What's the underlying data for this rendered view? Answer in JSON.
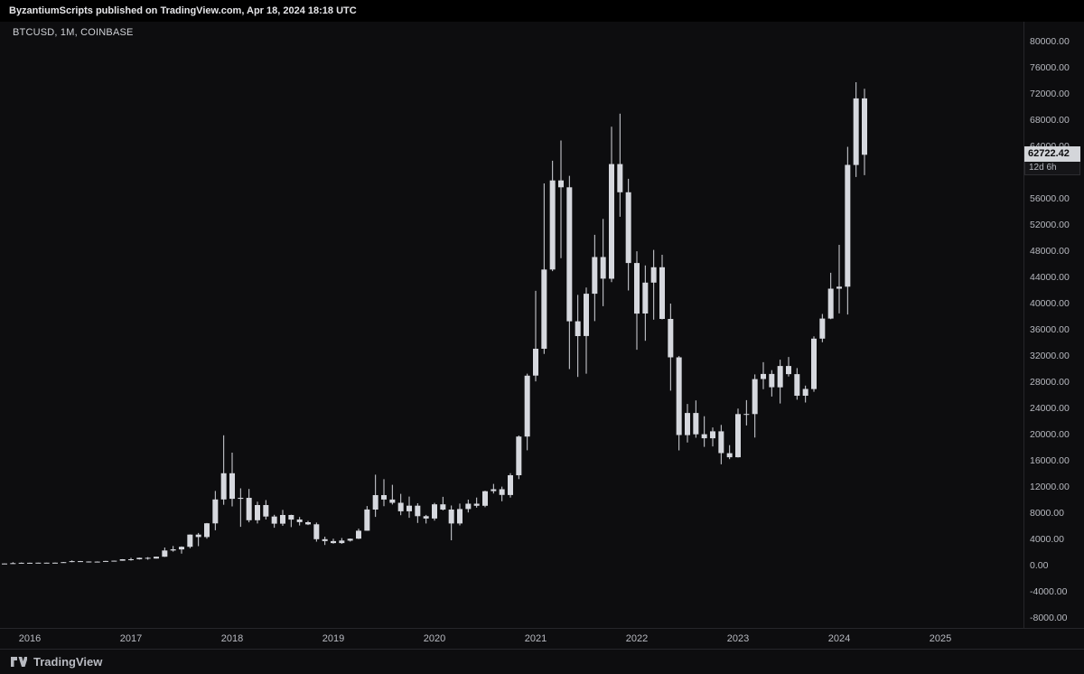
{
  "header": {
    "publish_line": "ByzantiumScripts published on TradingView.com, Apr 18, 2024 18:18 UTC"
  },
  "chart": {
    "symbol_label": "BTCUSD, 1M, COINBASE",
    "price_label": "62722.42",
    "countdown": "12d 6h"
  },
  "footer": {
    "brand": "TradingView"
  },
  "colors": {
    "background": "#0d0d0f",
    "topbar_background": "#000000",
    "candle": "#d6d8de",
    "axis_text": "#b8bac1",
    "separator": "#26262a",
    "price_tag_bg": "#d4d6da",
    "price_tag_text": "#0b0b0d"
  },
  "chart_data": {
    "type": "candlestick",
    "symbol": "BTCUSD",
    "interval": "1M",
    "exchange": "COINBASE",
    "last_price": 62722.42,
    "y_axis": {
      "min": -8000,
      "max": 80000,
      "step": 4000
    },
    "x_axis_years": [
      2016,
      2017,
      2018,
      2019,
      2020,
      2021,
      2022,
      2023,
      2024,
      2025
    ],
    "grid": false,
    "legend_position": "none",
    "candles": [
      [
        "2015-10",
        236,
        334,
        234,
        314
      ],
      [
        "2015-11",
        314,
        504,
        292,
        377
      ],
      [
        "2015-12",
        377,
        469,
        341,
        430
      ],
      [
        "2016-01",
        430,
        436,
        350,
        368
      ],
      [
        "2016-02",
        368,
        448,
        365,
        437
      ],
      [
        "2016-03",
        437,
        444,
        398,
        416
      ],
      [
        "2016-04",
        416,
        470,
        410,
        448
      ],
      [
        "2016-05",
        448,
        554,
        438,
        531
      ],
      [
        "2016-06",
        531,
        780,
        516,
        673
      ],
      [
        "2016-07",
        673,
        707,
        604,
        624
      ],
      [
        "2016-08",
        624,
        639,
        465,
        575
      ],
      [
        "2016-09",
        575,
        629,
        565,
        609
      ],
      [
        "2016-10",
        609,
        719,
        598,
        700
      ],
      [
        "2016-11",
        700,
        755,
        678,
        745
      ],
      [
        "2016-12",
        745,
        982,
        738,
        966
      ],
      [
        "2017-01",
        966,
        1191,
        752,
        970
      ],
      [
        "2017-02",
        970,
        1220,
        920,
        1190
      ],
      [
        "2017-03",
        1190,
        1290,
        891,
        1080
      ],
      [
        "2017-04",
        1080,
        1360,
        1060,
        1350
      ],
      [
        "2017-05",
        1350,
        2760,
        1320,
        2300
      ],
      [
        "2017-06",
        2300,
        2990,
        2120,
        2480
      ],
      [
        "2017-07",
        2480,
        2920,
        1830,
        2875
      ],
      [
        "2017-08",
        2875,
        4765,
        2650,
        4735
      ],
      [
        "2017-09",
        4735,
        4980,
        2970,
        4360
      ],
      [
        "2017-10",
        4360,
        6500,
        4110,
        6450
      ],
      [
        "2017-11",
        6450,
        11400,
        5400,
        10100
      ],
      [
        "2017-12",
        10100,
        19891,
        9280,
        14100
      ],
      [
        "2018-01",
        14100,
        17235,
        9035,
        10200
      ],
      [
        "2018-02",
        10200,
        11790,
        5920,
        10350
      ],
      [
        "2018-03",
        10350,
        11700,
        6600,
        6930
      ],
      [
        "2018-04",
        6930,
        9760,
        6425,
        9245
      ],
      [
        "2018-05",
        9245,
        9995,
        7040,
        7495
      ],
      [
        "2018-06",
        7495,
        7750,
        5775,
        6400
      ],
      [
        "2018-07",
        6400,
        8500,
        6070,
        7730
      ],
      [
        "2018-08",
        7730,
        7770,
        5880,
        7030
      ],
      [
        "2018-09",
        7030,
        7415,
        6120,
        6625
      ],
      [
        "2018-10",
        6625,
        6830,
        6190,
        6300
      ],
      [
        "2018-11",
        6300,
        6560,
        3650,
        4025
      ],
      [
        "2018-12",
        4025,
        4410,
        3150,
        3740
      ],
      [
        "2019-01",
        3740,
        4110,
        3350,
        3435
      ],
      [
        "2019-02",
        3435,
        4200,
        3330,
        3815
      ],
      [
        "2019-03",
        3815,
        4135,
        3665,
        4100
      ],
      [
        "2019-04",
        4100,
        5645,
        4055,
        5320
      ],
      [
        "2019-05",
        5320,
        9090,
        5320,
        8560
      ],
      [
        "2019-06",
        8560,
        13880,
        7430,
        10760
      ],
      [
        "2019-07",
        10760,
        13185,
        9080,
        10080
      ],
      [
        "2019-08",
        10080,
        12325,
        9320,
        9590
      ],
      [
        "2019-09",
        9590,
        10950,
        7700,
        8290
      ],
      [
        "2019-10",
        8290,
        10540,
        7300,
        9150
      ],
      [
        "2019-11",
        9150,
        9520,
        6515,
        7550
      ],
      [
        "2019-12",
        7550,
        7740,
        6430,
        7190
      ],
      [
        "2020-01",
        7190,
        9570,
        6850,
        9350
      ],
      [
        "2020-02",
        9350,
        10500,
        8415,
        8550
      ],
      [
        "2020-03",
        8550,
        9170,
        3860,
        6430
      ],
      [
        "2020-04",
        6430,
        9460,
        6140,
        8630
      ],
      [
        "2020-05",
        8630,
        10070,
        8115,
        9450
      ],
      [
        "2020-06",
        9450,
        10380,
        8835,
        9135
      ],
      [
        "2020-07",
        9135,
        11440,
        8905,
        11355
      ],
      [
        "2020-08",
        11355,
        12475,
        11010,
        11650
      ],
      [
        "2020-09",
        11650,
        12050,
        9825,
        10780
      ],
      [
        "2020-10",
        10780,
        14100,
        10380,
        13800
      ],
      [
        "2020-11",
        13800,
        19863,
        13200,
        19700
      ],
      [
        "2020-12",
        19700,
        29300,
        17600,
        29000
      ],
      [
        "2021-01",
        29000,
        41950,
        28130,
        33100
      ],
      [
        "2021-02",
        33100,
        58350,
        32320,
        45200
      ],
      [
        "2021-03",
        45200,
        61800,
        44950,
        58800
      ],
      [
        "2021-04",
        58800,
        64900,
        46930,
        57750
      ],
      [
        "2021-05",
        57750,
        59500,
        30000,
        37300
      ],
      [
        "2021-06",
        37300,
        41330,
        28800,
        35040
      ],
      [
        "2021-07",
        35040,
        42450,
        29300,
        41500
      ],
      [
        "2021-08",
        41500,
        50500,
        37330,
        47100
      ],
      [
        "2021-09",
        47100,
        52920,
        39600,
        43800
      ],
      [
        "2021-10",
        43800,
        66999,
        43285,
        61300
      ],
      [
        "2021-11",
        61300,
        69000,
        53250,
        57000
      ],
      [
        "2021-12",
        57000,
        59050,
        42000,
        46200
      ],
      [
        "2022-01",
        46200,
        47990,
        32950,
        38480
      ],
      [
        "2022-02",
        38480,
        45820,
        34322,
        43200
      ],
      [
        "2022-03",
        43200,
        48200,
        37550,
        45540
      ],
      [
        "2022-04",
        45540,
        47450,
        37580,
        37650
      ],
      [
        "2022-05",
        37650,
        40000,
        26700,
        31790
      ],
      [
        "2022-06",
        31790,
        31980,
        17590,
        19925
      ],
      [
        "2022-07",
        19925,
        24670,
        18780,
        23300
      ],
      [
        "2022-08",
        23300,
        25210,
        19520,
        20050
      ],
      [
        "2022-09",
        20050,
        22800,
        18125,
        19425
      ],
      [
        "2022-10",
        19425,
        21085,
        18190,
        20490
      ],
      [
        "2022-11",
        20490,
        21480,
        15460,
        17165
      ],
      [
        "2022-12",
        17165,
        18385,
        16255,
        16540
      ],
      [
        "2023-01",
        16540,
        23960,
        16490,
        23130
      ],
      [
        "2023-02",
        23130,
        25250,
        21390,
        23140
      ],
      [
        "2023-03",
        23140,
        29185,
        19550,
        28475
      ],
      [
        "2023-04",
        28475,
        31050,
        26940,
        29250
      ],
      [
        "2023-05",
        29250,
        29840,
        25810,
        27220
      ],
      [
        "2023-06",
        27220,
        31430,
        24750,
        30470
      ],
      [
        "2023-07",
        30470,
        31850,
        28860,
        29230
      ],
      [
        "2023-08",
        29230,
        30150,
        25330,
        25930
      ],
      [
        "2023-09",
        25930,
        27480,
        24900,
        26960
      ],
      [
        "2023-10",
        26960,
        35000,
        26540,
        34650
      ],
      [
        "2023-11",
        34650,
        38420,
        34100,
        37710
      ],
      [
        "2023-12",
        37710,
        44700,
        37615,
        42280
      ],
      [
        "2024-01",
        42280,
        48970,
        38500,
        42580
      ],
      [
        "2024-02",
        42580,
        63930,
        38330,
        61170
      ],
      [
        "2024-03",
        61170,
        73800,
        59320,
        71330
      ],
      [
        "2024-04",
        71330,
        72800,
        59600,
        62722
      ]
    ]
  }
}
